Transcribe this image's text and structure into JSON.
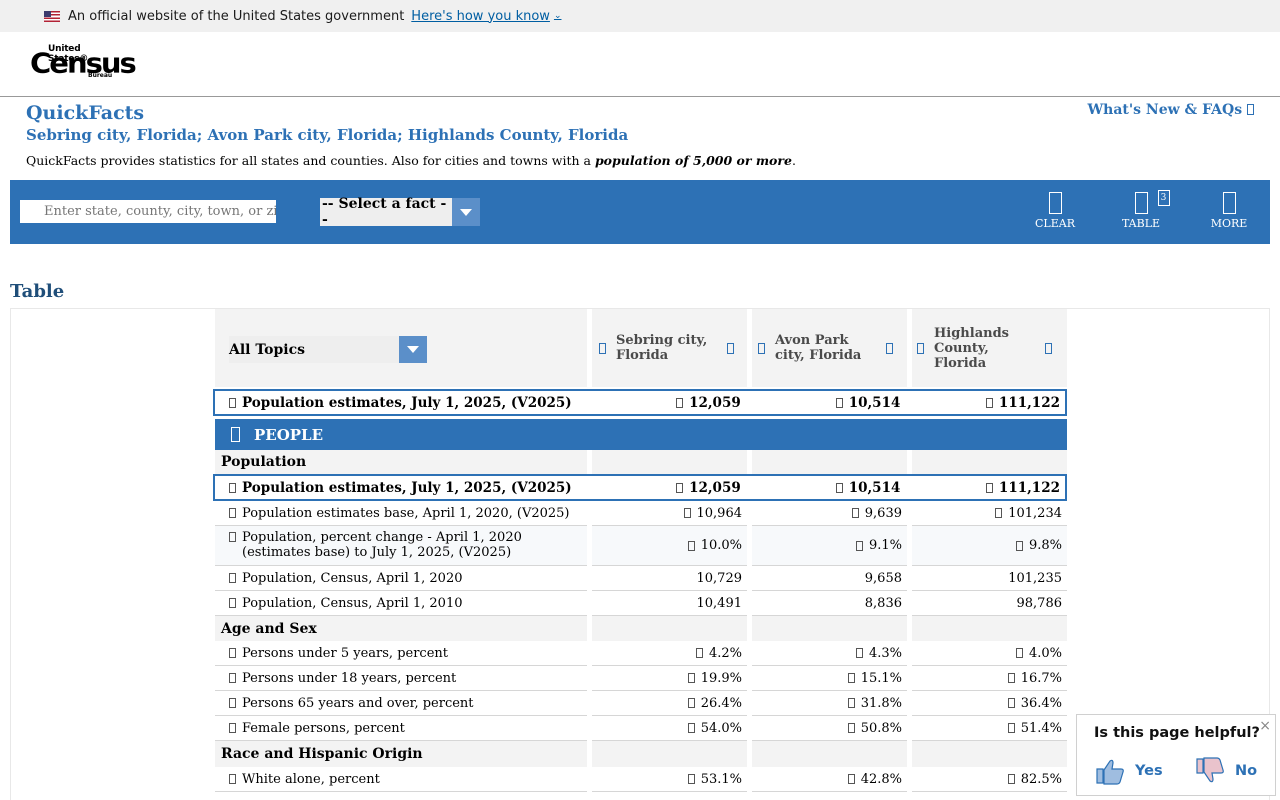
{
  "banner": {
    "text": "An official website of the United States government",
    "link": "Here's how you know"
  },
  "logo": {
    "line1": "United States®",
    "line2": "Census",
    "line3": "Bureau"
  },
  "page": {
    "title": "QuickFacts",
    "subtitle": "Sebring city, Florida; Avon Park city, Florida; Highlands County, Florida",
    "desc_prefix": "QuickFacts provides statistics for all states and counties. Also for cities and towns with a ",
    "desc_emph": "population of 5,000 or more",
    "desc_suffix": ".",
    "whats_new": "What's New & FAQs"
  },
  "toolbar": {
    "search_placeholder": "Enter state, county, city, town, or zip code",
    "fact_select": "-- Select a fact --",
    "clear": "CLEAR",
    "table": "TABLE",
    "table_badge": "3",
    "more": "MORE"
  },
  "table": {
    "heading": "Table",
    "topics": "All Topics",
    "columns": [
      "Sebring city, Florida",
      "Avon Park city, Florida",
      "Highlands County, Florida"
    ],
    "header_row": {
      "label": "Population estimates, July 1, 2025, (V2025)",
      "values": [
        "12,059",
        "10,514",
        "111,122"
      ]
    },
    "section": "PEOPLE",
    "groups": {
      "population": {
        "title": "Population",
        "rows": [
          {
            "label": "Population estimates, July 1, 2025, (V2025)",
            "values": [
              "12,059",
              "10,514",
              "111,122"
            ]
          },
          {
            "label": "Population estimates base, April 1, 2020, (V2025)",
            "values": [
              "10,964",
              "9,639",
              "101,234"
            ]
          },
          {
            "label": "Population, percent change - April 1, 2020 (estimates base) to July 1, 2025, (V2025)",
            "values": [
              "10.0%",
              "9.1%",
              "9.8%"
            ]
          },
          {
            "label": "Population, Census, April 1, 2020",
            "values": [
              "10,729",
              "9,658",
              "101,235"
            ]
          },
          {
            "label": "Population, Census, April 1, 2010",
            "values": [
              "10,491",
              "8,836",
              "98,786"
            ]
          }
        ]
      },
      "age": {
        "title": "Age and Sex",
        "rows": [
          {
            "label": "Persons under 5 years, percent",
            "values": [
              "4.2%",
              "4.3%",
              "4.0%"
            ]
          },
          {
            "label": "Persons under 18 years, percent",
            "values": [
              "19.9%",
              "15.1%",
              "16.7%"
            ]
          },
          {
            "label": "Persons 65 years and over, percent",
            "values": [
              "26.4%",
              "31.8%",
              "36.4%"
            ]
          },
          {
            "label": "Female persons, percent",
            "values": [
              "54.0%",
              "50.8%",
              "51.4%"
            ]
          }
        ]
      },
      "race": {
        "title": "Race and Hispanic Origin",
        "rows": [
          {
            "label": "White alone, percent",
            "values": [
              "53.1%",
              "42.8%",
              "82.5%"
            ]
          }
        ]
      }
    }
  },
  "feedback": {
    "question": "Is this page helpful?",
    "yes": "Yes",
    "no": "No",
    "close": "×"
  },
  "colors": {
    "brand_blue": "#2d71b5",
    "header_bg": "#f3f3f3"
  }
}
